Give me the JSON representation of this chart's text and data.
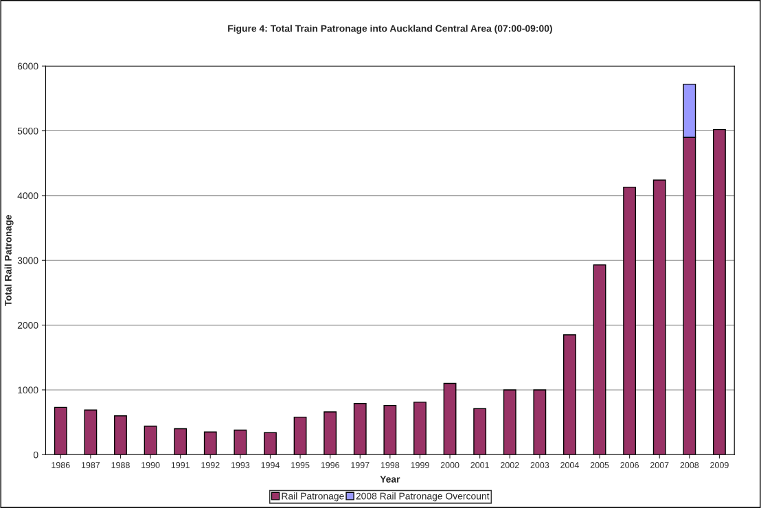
{
  "chart_data": {
    "type": "bar",
    "title": "Figure 4: Total Train Patronage into Auckland Central Area (07:00-09:00)",
    "xlabel": "Year",
    "ylabel": "Total Rail Patronage",
    "categories": [
      "1986",
      "1987",
      "1988",
      "1990",
      "1991",
      "1992",
      "1993",
      "1994",
      "1995",
      "1996",
      "1997",
      "1998",
      "1999",
      "2000",
      "2001",
      "2002",
      "2003",
      "2004",
      "2005",
      "2006",
      "2007",
      "2008",
      "2009"
    ],
    "stacked": true,
    "series": [
      {
        "name": "Rail Patronage",
        "color": "#993366",
        "values": [
          730,
          690,
          600,
          440,
          400,
          350,
          380,
          340,
          580,
          660,
          790,
          760,
          810,
          1100,
          710,
          1000,
          1000,
          1850,
          2930,
          4130,
          4240,
          4900,
          5020
        ]
      },
      {
        "name": "2008 Rail Patronage Overcount",
        "color": "#9999ff",
        "values": [
          null,
          null,
          null,
          null,
          null,
          null,
          null,
          null,
          null,
          null,
          null,
          null,
          null,
          null,
          null,
          null,
          null,
          null,
          null,
          null,
          null,
          820,
          null
        ]
      }
    ],
    "ylim": [
      0,
      6000
    ],
    "yticks": [
      0,
      1000,
      2000,
      3000,
      4000,
      5000,
      6000
    ],
    "grid": "y",
    "legend": "bottom"
  }
}
